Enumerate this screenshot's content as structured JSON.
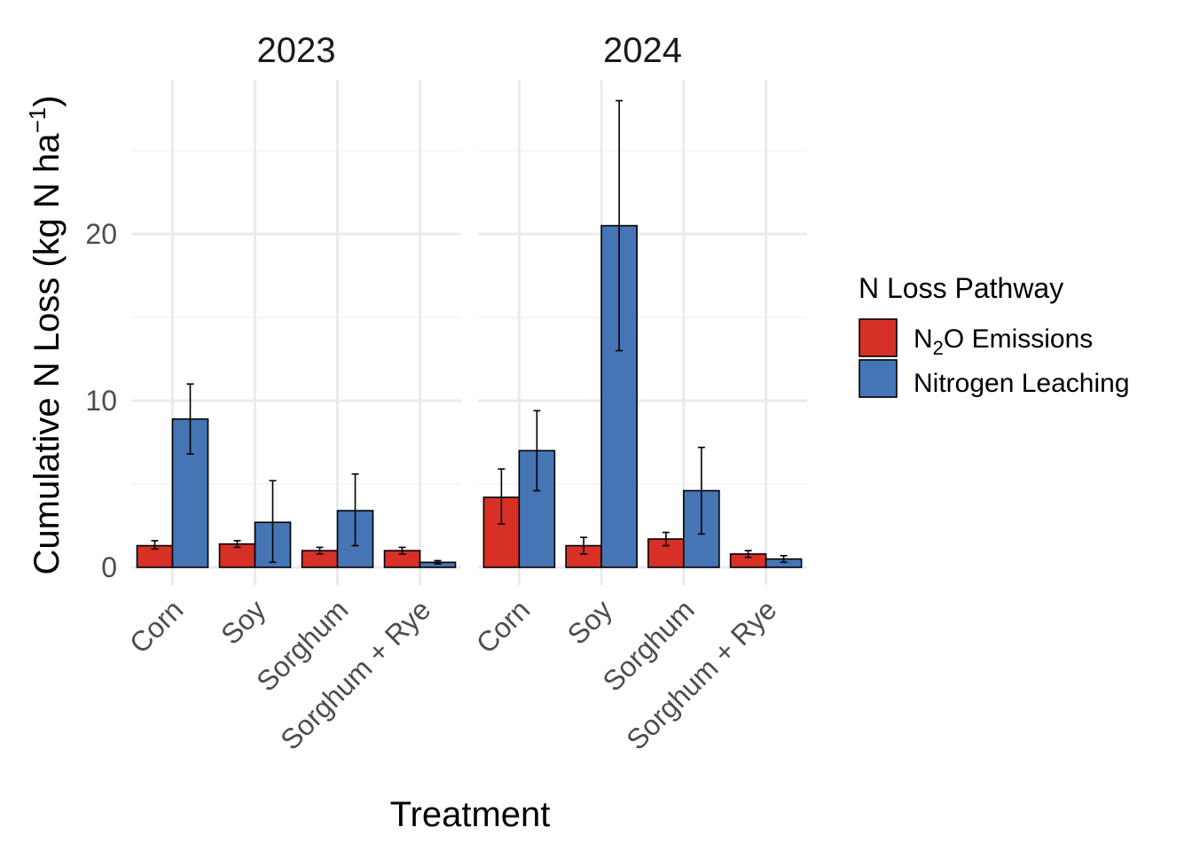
{
  "chart_data": {
    "type": "bar",
    "facets": [
      "2023",
      "2024"
    ],
    "categories": [
      "Corn",
      "Soy",
      "Sorghum",
      "Sorghum + Rye"
    ],
    "series": [
      {
        "name_parts": [
          "N",
          "2",
          "O Emissions"
        ],
        "color": "#d73027",
        "data": {
          "2023": {
            "values": [
              1.3,
              1.4,
              1.0,
              1.0
            ],
            "lower": [
              1.1,
              1.2,
              0.8,
              0.8
            ],
            "upper": [
              1.6,
              1.6,
              1.2,
              1.2
            ]
          },
          "2024": {
            "values": [
              4.2,
              1.3,
              1.7,
              0.8
            ],
            "lower": [
              2.6,
              0.8,
              1.3,
              0.6
            ],
            "upper": [
              5.9,
              1.8,
              2.1,
              1.0
            ]
          }
        }
      },
      {
        "name_parts": [
          "Nitrogen Leaching",
          "",
          ""
        ],
        "color": "#4575b4",
        "data": {
          "2023": {
            "values": [
              8.9,
              2.7,
              3.4,
              0.3
            ],
            "lower": [
              6.8,
              0.3,
              1.3,
              0.2
            ],
            "upper": [
              11.0,
              5.2,
              5.6,
              0.4
            ]
          },
          "2024": {
            "values": [
              7.0,
              20.5,
              4.6,
              0.5
            ],
            "lower": [
              4.6,
              13.0,
              2.0,
              0.3
            ],
            "upper": [
              9.4,
              28.0,
              7.2,
              0.7
            ]
          }
        }
      }
    ],
    "ylim": [
      0,
      29.5
    ],
    "yticks": [
      0,
      10,
      20
    ],
    "xlabel": "Treatment",
    "ylabel_main": "Cumulative N Loss (kg N ha",
    "ylabel_sup": "−1",
    "ylabel_close": ")",
    "legend": {
      "title": "N Loss Pathway",
      "position": "right"
    },
    "grid": true
  }
}
